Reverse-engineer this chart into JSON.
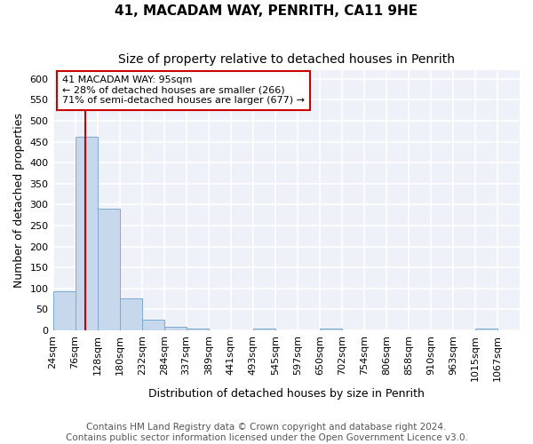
{
  "title": "41, MACADAM WAY, PENRITH, CA11 9HE",
  "subtitle": "Size of property relative to detached houses in Penrith",
  "xlabel": "Distribution of detached houses by size in Penrith",
  "ylabel": "Number of detached properties",
  "bar_color": "#c8d8ec",
  "bar_edge_color": "#7aaad0",
  "categories": [
    "24sqm",
    "76sqm",
    "128sqm",
    "180sqm",
    "232sqm",
    "284sqm",
    "337sqm",
    "389sqm",
    "441sqm",
    "493sqm",
    "545sqm",
    "597sqm",
    "650sqm",
    "702sqm",
    "754sqm",
    "806sqm",
    "858sqm",
    "910sqm",
    "963sqm",
    "1015sqm",
    "1067sqm"
  ],
  "values": [
    93,
    462,
    290,
    77,
    25,
    8,
    5,
    0,
    0,
    5,
    0,
    0,
    5,
    0,
    0,
    0,
    0,
    0,
    0,
    5,
    0
  ],
  "red_line_x": 1.45,
  "annotation_text": "41 MACADAM WAY: 95sqm\n← 28% of detached houses are smaller (266)\n71% of semi-detached houses are larger (677) →",
  "red_line_color": "#cc0000",
  "ylim": [
    0,
    620
  ],
  "yticks": [
    0,
    50,
    100,
    150,
    200,
    250,
    300,
    350,
    400,
    450,
    500,
    550,
    600
  ],
  "footer_line1": "Contains HM Land Registry data © Crown copyright and database right 2024.",
  "footer_line2": "Contains public sector information licensed under the Open Government Licence v3.0.",
  "background_color": "#eef2f8",
  "grid_color": "#ffffff",
  "title_fontsize": 11,
  "subtitle_fontsize": 10,
  "tick_fontsize": 8,
  "ylabel_fontsize": 9,
  "xlabel_fontsize": 9,
  "footer_fontsize": 7.5
}
